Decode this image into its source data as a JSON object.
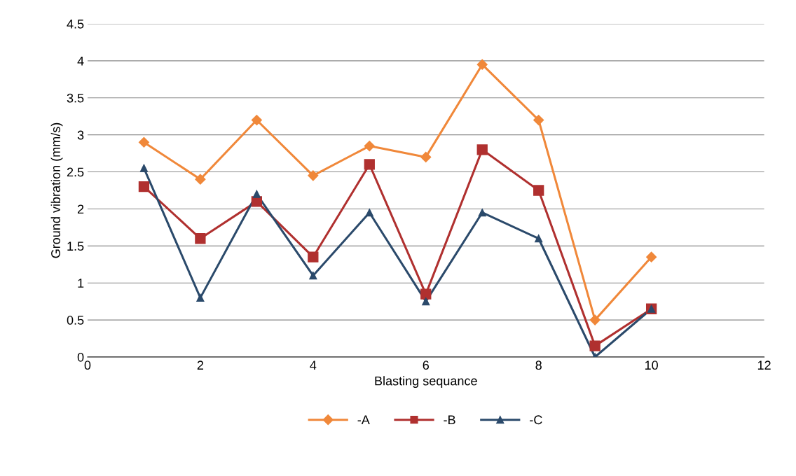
{
  "chart_data": {
    "type": "line",
    "xlabel": "Blasting sequance",
    "ylabel": "Ground vibration (mm/s)",
    "x": [
      1,
      2,
      3,
      4,
      5,
      6,
      7,
      8,
      9,
      10
    ],
    "xlim": [
      0,
      12
    ],
    "xticks": [
      0,
      2,
      4,
      6,
      8,
      10,
      12
    ],
    "ylim": [
      0,
      4.5
    ],
    "yticks": [
      0,
      0.5,
      1,
      1.5,
      2,
      2.5,
      3,
      3.5,
      4,
      4.5
    ],
    "grid": "y",
    "legend": "bottom",
    "series": [
      {
        "name": "-A",
        "color": "#f0883a",
        "marker": "diamond",
        "values": [
          2.9,
          2.4,
          3.2,
          2.45,
          2.85,
          2.7,
          3.95,
          3.2,
          0.5,
          1.35
        ]
      },
      {
        "name": "-B",
        "color": "#b0302f",
        "marker": "square",
        "values": [
          2.3,
          1.6,
          2.1,
          1.35,
          2.6,
          0.85,
          2.8,
          2.25,
          0.15,
          0.65
        ]
      },
      {
        "name": "-C",
        "color": "#2b4a6b",
        "marker": "triangle",
        "values": [
          2.55,
          0.8,
          2.2,
          1.1,
          1.95,
          0.75,
          1.95,
          1.6,
          0.0,
          0.65
        ]
      }
    ]
  }
}
